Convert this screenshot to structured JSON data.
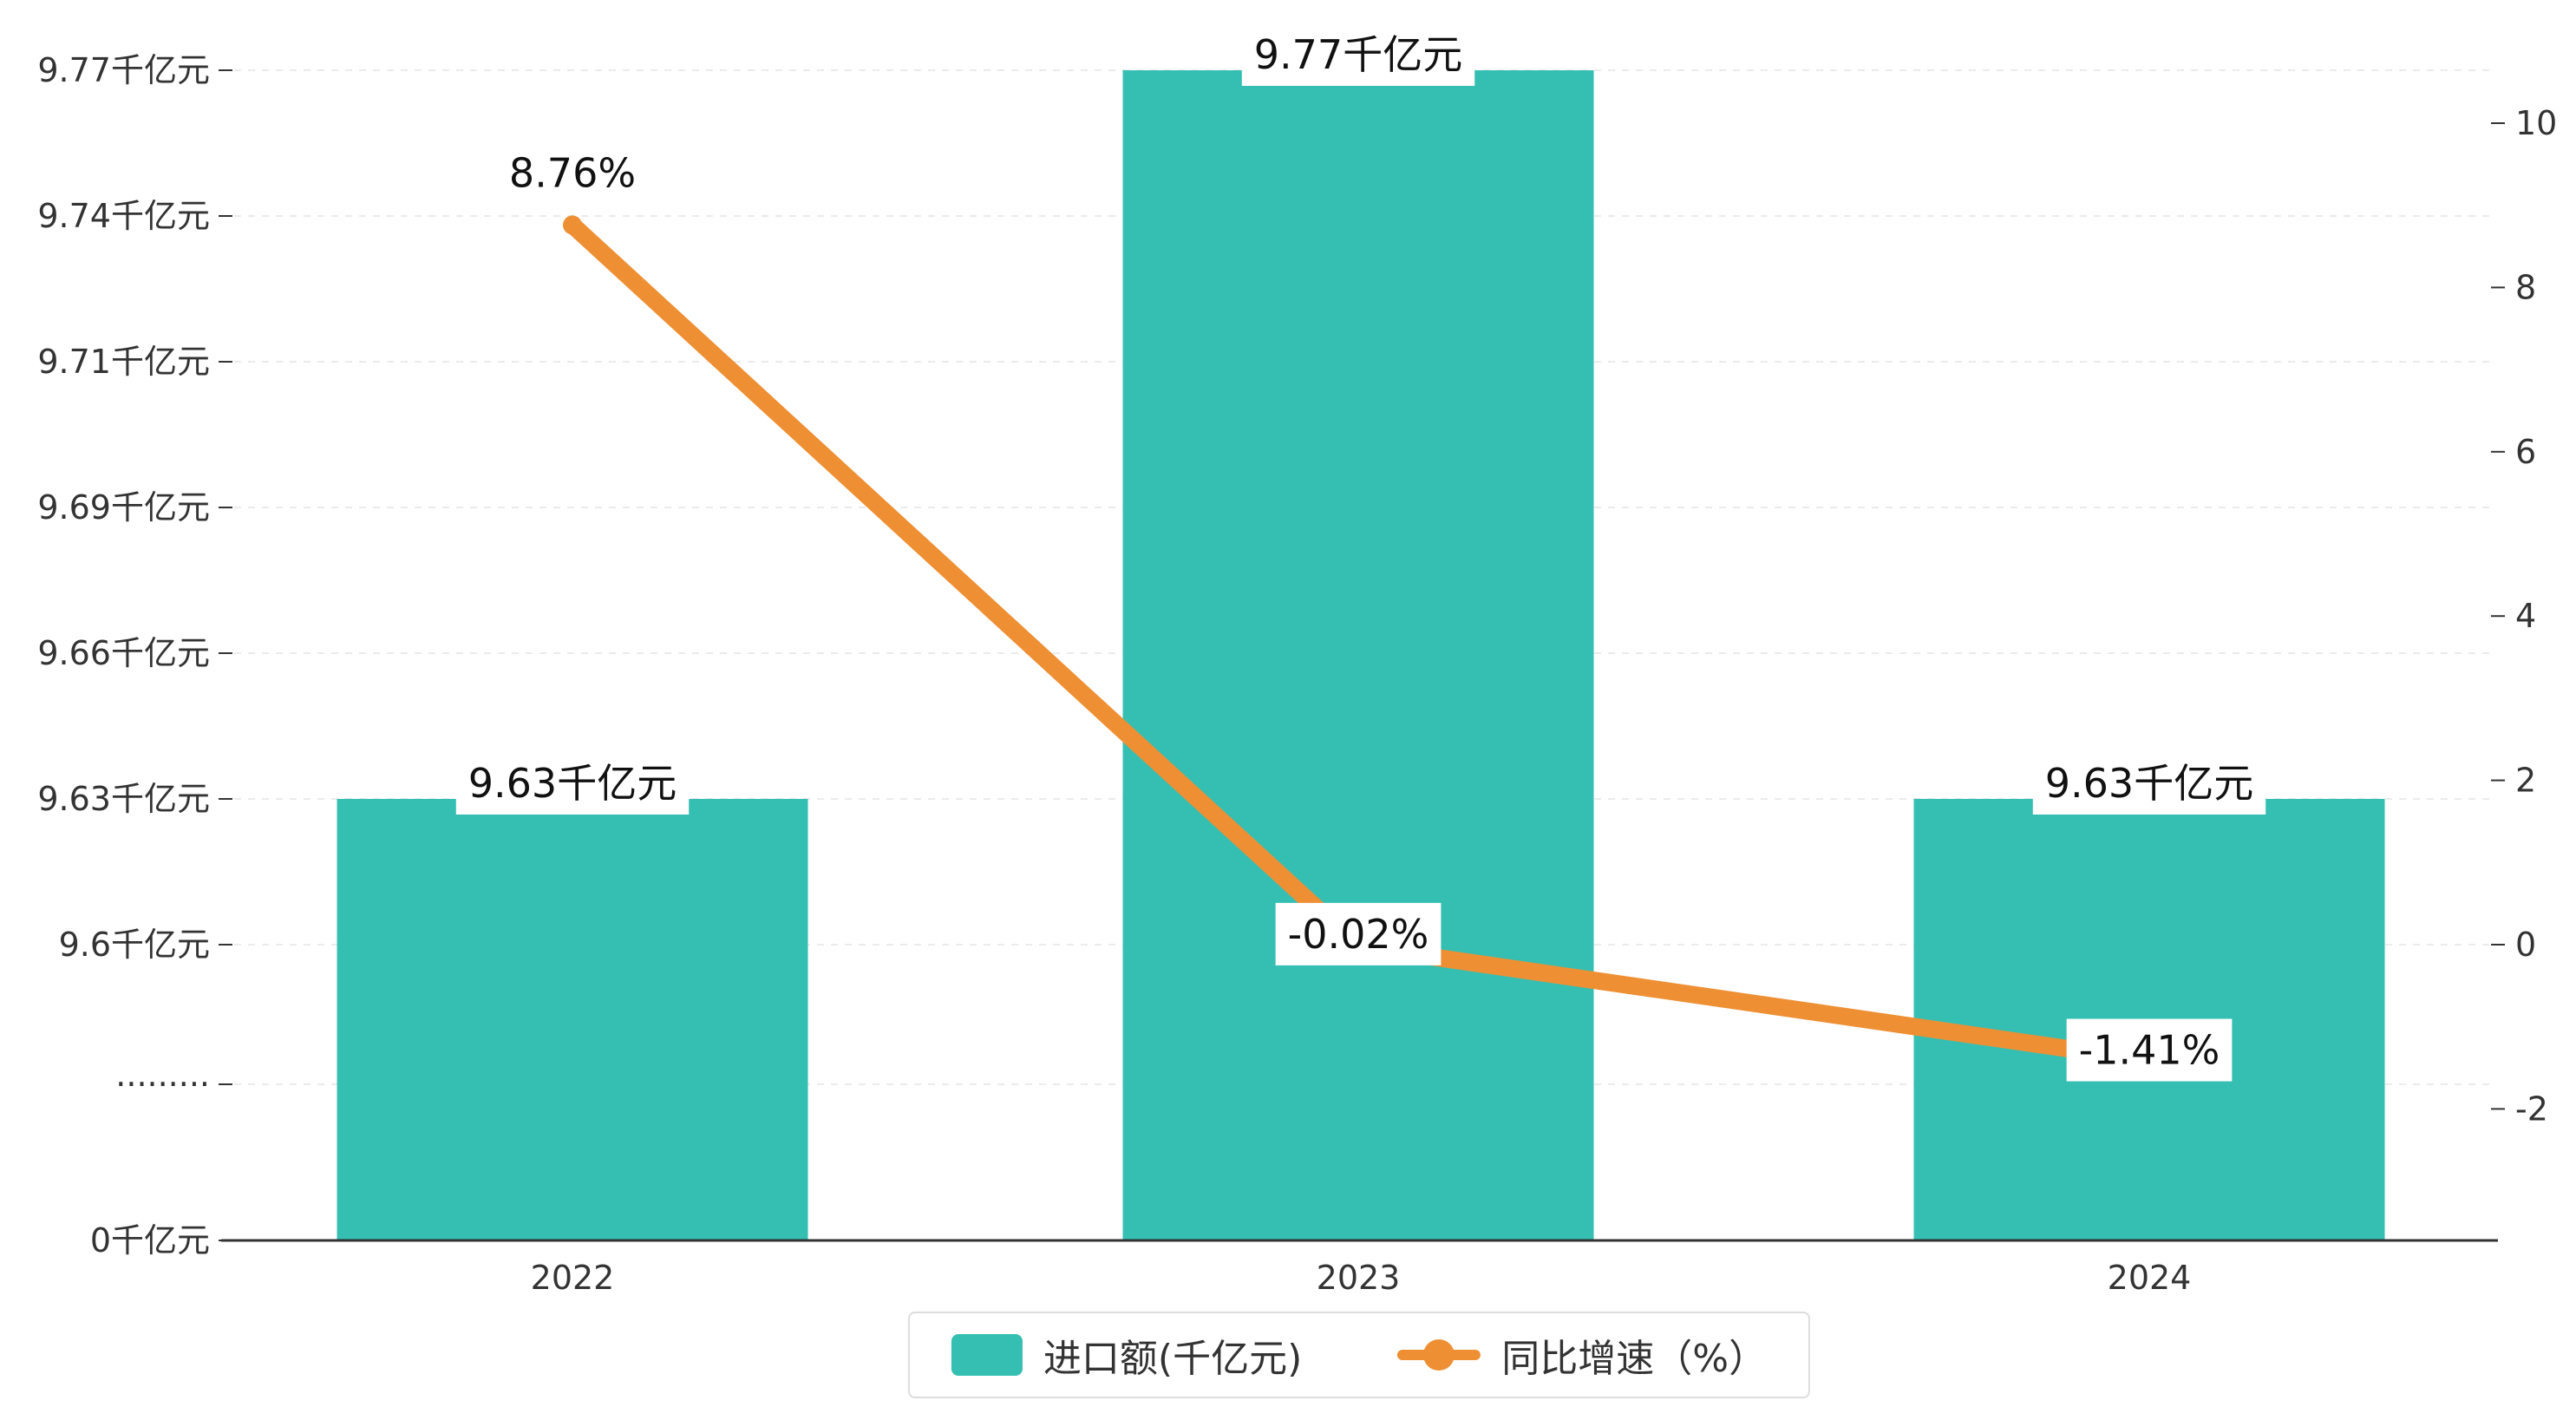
{
  "chart_data": {
    "type": "combo",
    "categories": [
      "2022",
      "2023",
      "2024"
    ],
    "series": [
      {
        "name": "进口额(千亿元)",
        "type": "bar",
        "values": [
          9.63,
          9.77,
          9.63
        ],
        "labels": [
          "9.63千亿元",
          "9.77千亿元",
          "9.63千亿元"
        ],
        "color": "#35bfb2"
      },
      {
        "name": "同比增速（%）",
        "type": "line",
        "values": [
          8.76,
          -0.02,
          -1.41
        ],
        "labels": [
          "8.76%",
          "-0.02%",
          "-1.41%"
        ],
        "color": "#ee8f34"
      }
    ],
    "left_axis": {
      "tick_labels": [
        "9.77千亿元",
        "9.74千亿元",
        "9.71千亿元",
        "9.69千亿元",
        "9.66千亿元",
        "9.63千亿元",
        "9.6千亿元",
        "·········",
        "0千亿元"
      ],
      "tick_values": [
        9.77,
        9.74,
        9.71,
        9.69,
        9.66,
        9.63,
        9.6,
        null,
        0
      ],
      "axis_break": true
    },
    "right_axis": {
      "tick_labels": [
        "10",
        "8",
        "6",
        "4",
        "2",
        "0",
        "-2"
      ],
      "tick_values": [
        10,
        8,
        6,
        4,
        2,
        0,
        -2
      ]
    },
    "legend": [
      {
        "label": "进口额(千亿元)",
        "marker": "bar"
      },
      {
        "label": "同比增速（%）",
        "marker": "line"
      }
    ],
    "grid": true,
    "title": ""
  }
}
